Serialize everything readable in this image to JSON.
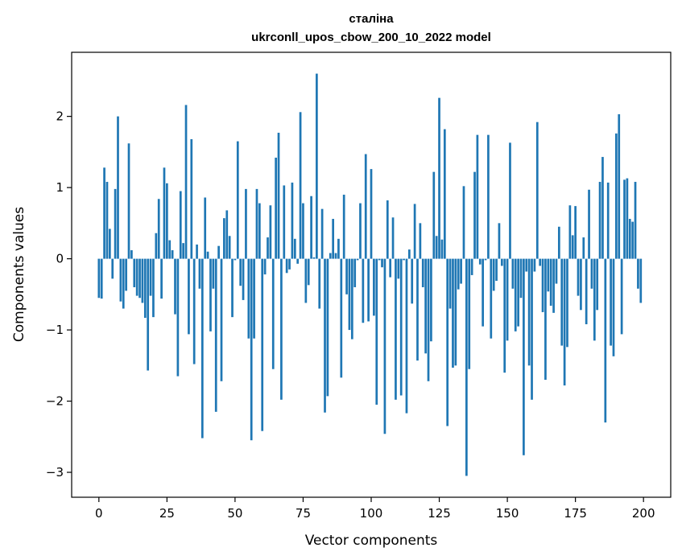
{
  "chart_data": {
    "type": "bar",
    "title": "сталіна",
    "subtitle": "ukrconll_upos_cbow_200_10_2022 model",
    "xlabel": "Vector components",
    "ylabel": "Components values",
    "xlim": [
      -10,
      210
    ],
    "ylim": [
      -3.35,
      2.9
    ],
    "xticks": [
      0,
      25,
      50,
      75,
      100,
      125,
      150,
      175,
      200
    ],
    "yticks": [
      -3,
      -2,
      -1,
      0,
      1,
      2
    ],
    "color": "#1f77b4",
    "grid": false,
    "values": [
      -0.55,
      -0.56,
      1.28,
      1.08,
      0.42,
      -0.28,
      0.98,
      2.0,
      -0.6,
      -0.7,
      -0.45,
      1.62,
      0.12,
      -0.4,
      -0.52,
      -0.55,
      -0.62,
      -0.83,
      -1.57,
      -0.52,
      -0.82,
      0.36,
      0.84,
      -0.56,
      1.28,
      1.06,
      0.26,
      0.12,
      -0.78,
      -1.65,
      0.95,
      0.22,
      2.16,
      -1.06,
      1.68,
      -1.48,
      0.2,
      -0.42,
      -2.52,
      0.86,
      0.1,
      -1.02,
      -0.42,
      -2.15,
      0.18,
      -1.72,
      0.57,
      0.68,
      0.32,
      -0.82,
      -0.02,
      1.65,
      -0.38,
      -0.58,
      0.98,
      -1.12,
      -2.55,
      -1.12,
      0.98,
      0.78,
      -2.42,
      -0.22,
      0.3,
      0.75,
      -1.55,
      1.42,
      1.77,
      -1.98,
      1.03,
      -0.2,
      -0.15,
      1.07,
      0.28,
      -0.07,
      2.06,
      0.78,
      -0.62,
      -0.37,
      0.88,
      0.02,
      2.6,
      -0.7,
      0.7,
      -2.16,
      -1.93,
      0.08,
      0.56,
      0.08,
      0.28,
      -1.67,
      0.9,
      -0.5,
      -1.0,
      -1.13,
      -0.4,
      -0.02,
      0.78,
      -0.9,
      1.47,
      -0.88,
      1.26,
      -0.8,
      -2.05,
      -0.02,
      -0.12,
      -2.46,
      0.82,
      -0.26,
      0.58,
      -1.98,
      -0.28,
      -1.92,
      -0.02,
      -2.17,
      0.13,
      -0.63,
      0.77,
      -1.43,
      0.5,
      -0.4,
      -1.33,
      -1.72,
      -1.16,
      1.22,
      0.32,
      2.26,
      0.27,
      1.82,
      -2.35,
      -0.7,
      -1.53,
      -1.5,
      -0.43,
      -0.35,
      1.02,
      -3.05,
      -1.55,
      -0.23,
      1.22,
      1.74,
      -0.08,
      -0.95,
      -0.02,
      1.74,
      -1.12,
      -0.45,
      -0.31,
      0.5,
      -0.1,
      -1.6,
      -1.15,
      1.63,
      -0.42,
      -1.02,
      -0.95,
      -0.55,
      -2.76,
      -0.18,
      -1.5,
      -1.98,
      -0.18,
      1.92,
      -0.1,
      -0.75,
      -1.7,
      -0.46,
      -0.66,
      -0.76,
      -0.35,
      0.45,
      -1.22,
      -1.78,
      -1.24,
      0.75,
      0.33,
      0.74,
      -0.52,
      -0.72,
      0.3,
      -0.92,
      0.97,
      -0.42,
      -1.15,
      -0.72,
      1.08,
      1.43,
      -2.3,
      1.07,
      -1.22,
      -1.37,
      1.76,
      2.03,
      -1.06,
      1.11,
      1.13,
      0.56,
      0.52,
      1.08,
      -0.42,
      -0.62
    ]
  }
}
